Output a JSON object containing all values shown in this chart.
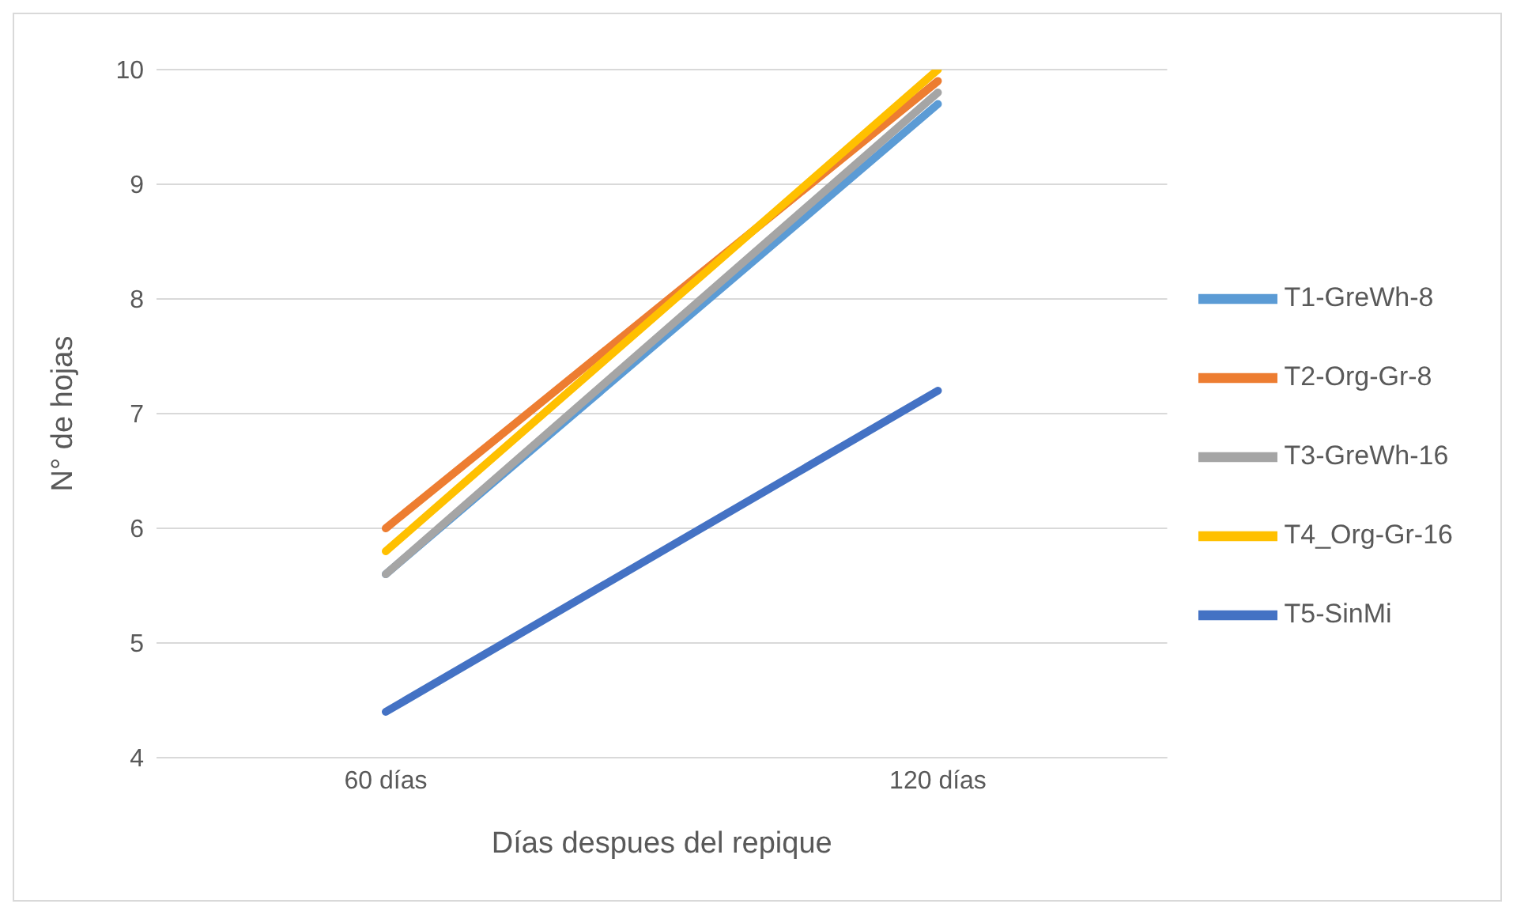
{
  "chart_data": {
    "type": "line",
    "xlabel": "Días despues del repique",
    "ylabel": "N° de hojas",
    "categories": [
      "60 días",
      "120 días"
    ],
    "series": [
      {
        "name": "T1-GreWh-8",
        "color": "#5b9bd5",
        "values": [
          5.6,
          9.7
        ]
      },
      {
        "name": "T2-Org-Gr-8",
        "color": "#ed7d31",
        "values": [
          6.0,
          9.9
        ]
      },
      {
        "name": "T3-GreWh-16",
        "color": "#a5a5a5",
        "values": [
          5.6,
          9.8
        ]
      },
      {
        "name": "T4_Org-Gr-16",
        "color": "#ffc000",
        "values": [
          5.8,
          10.0
        ]
      },
      {
        "name": "T5-SinMi",
        "color": "#4472c4",
        "values": [
          4.4,
          7.2
        ]
      }
    ],
    "ylim": [
      4,
      10
    ],
    "yticks": [
      4,
      5,
      6,
      7,
      8,
      9,
      10
    ],
    "grid": "y",
    "legend": "right",
    "marker": "none",
    "line_style": "solid"
  }
}
